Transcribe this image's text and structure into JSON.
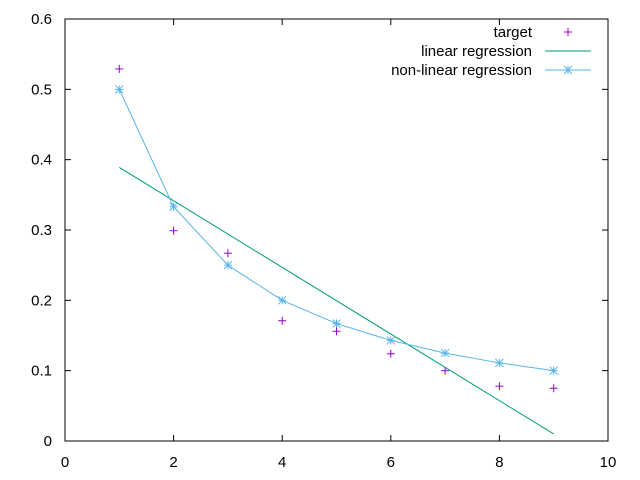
{
  "chart_data": {
    "type": "scatter",
    "title": "",
    "xlabel": "",
    "ylabel": "",
    "xlim": [
      0,
      10
    ],
    "ylim": [
      0,
      0.6
    ],
    "x_ticks": [
      "0",
      "2",
      "4",
      "6",
      "8",
      "10"
    ],
    "y_ticks": [
      "0",
      "0.1",
      "0.2",
      "0.3",
      "0.4",
      "0.5",
      "0.6"
    ],
    "grid": false,
    "legend_position": "top-right",
    "series": [
      {
        "name": "target",
        "style": "points",
        "marker": "plus",
        "color": "#9400d3",
        "x": [
          1,
          2,
          3,
          4,
          5,
          6,
          7,
          8,
          9
        ],
        "y": [
          0.529,
          0.299,
          0.267,
          0.171,
          0.156,
          0.124,
          0.1,
          0.078,
          0.075
        ]
      },
      {
        "name": "linear regression",
        "style": "line",
        "marker": "none",
        "color": "#009e73",
        "x": [
          1,
          9
        ],
        "y": [
          0.389,
          0.01
        ]
      },
      {
        "name": "non-linear regression",
        "style": "linespoints",
        "marker": "star",
        "color": "#56b4e9",
        "x": [
          1,
          2,
          3,
          4,
          5,
          6,
          7,
          8,
          9
        ],
        "y": [
          0.5,
          0.333,
          0.25,
          0.2,
          0.167,
          0.143,
          0.125,
          0.111,
          0.1
        ]
      }
    ]
  }
}
